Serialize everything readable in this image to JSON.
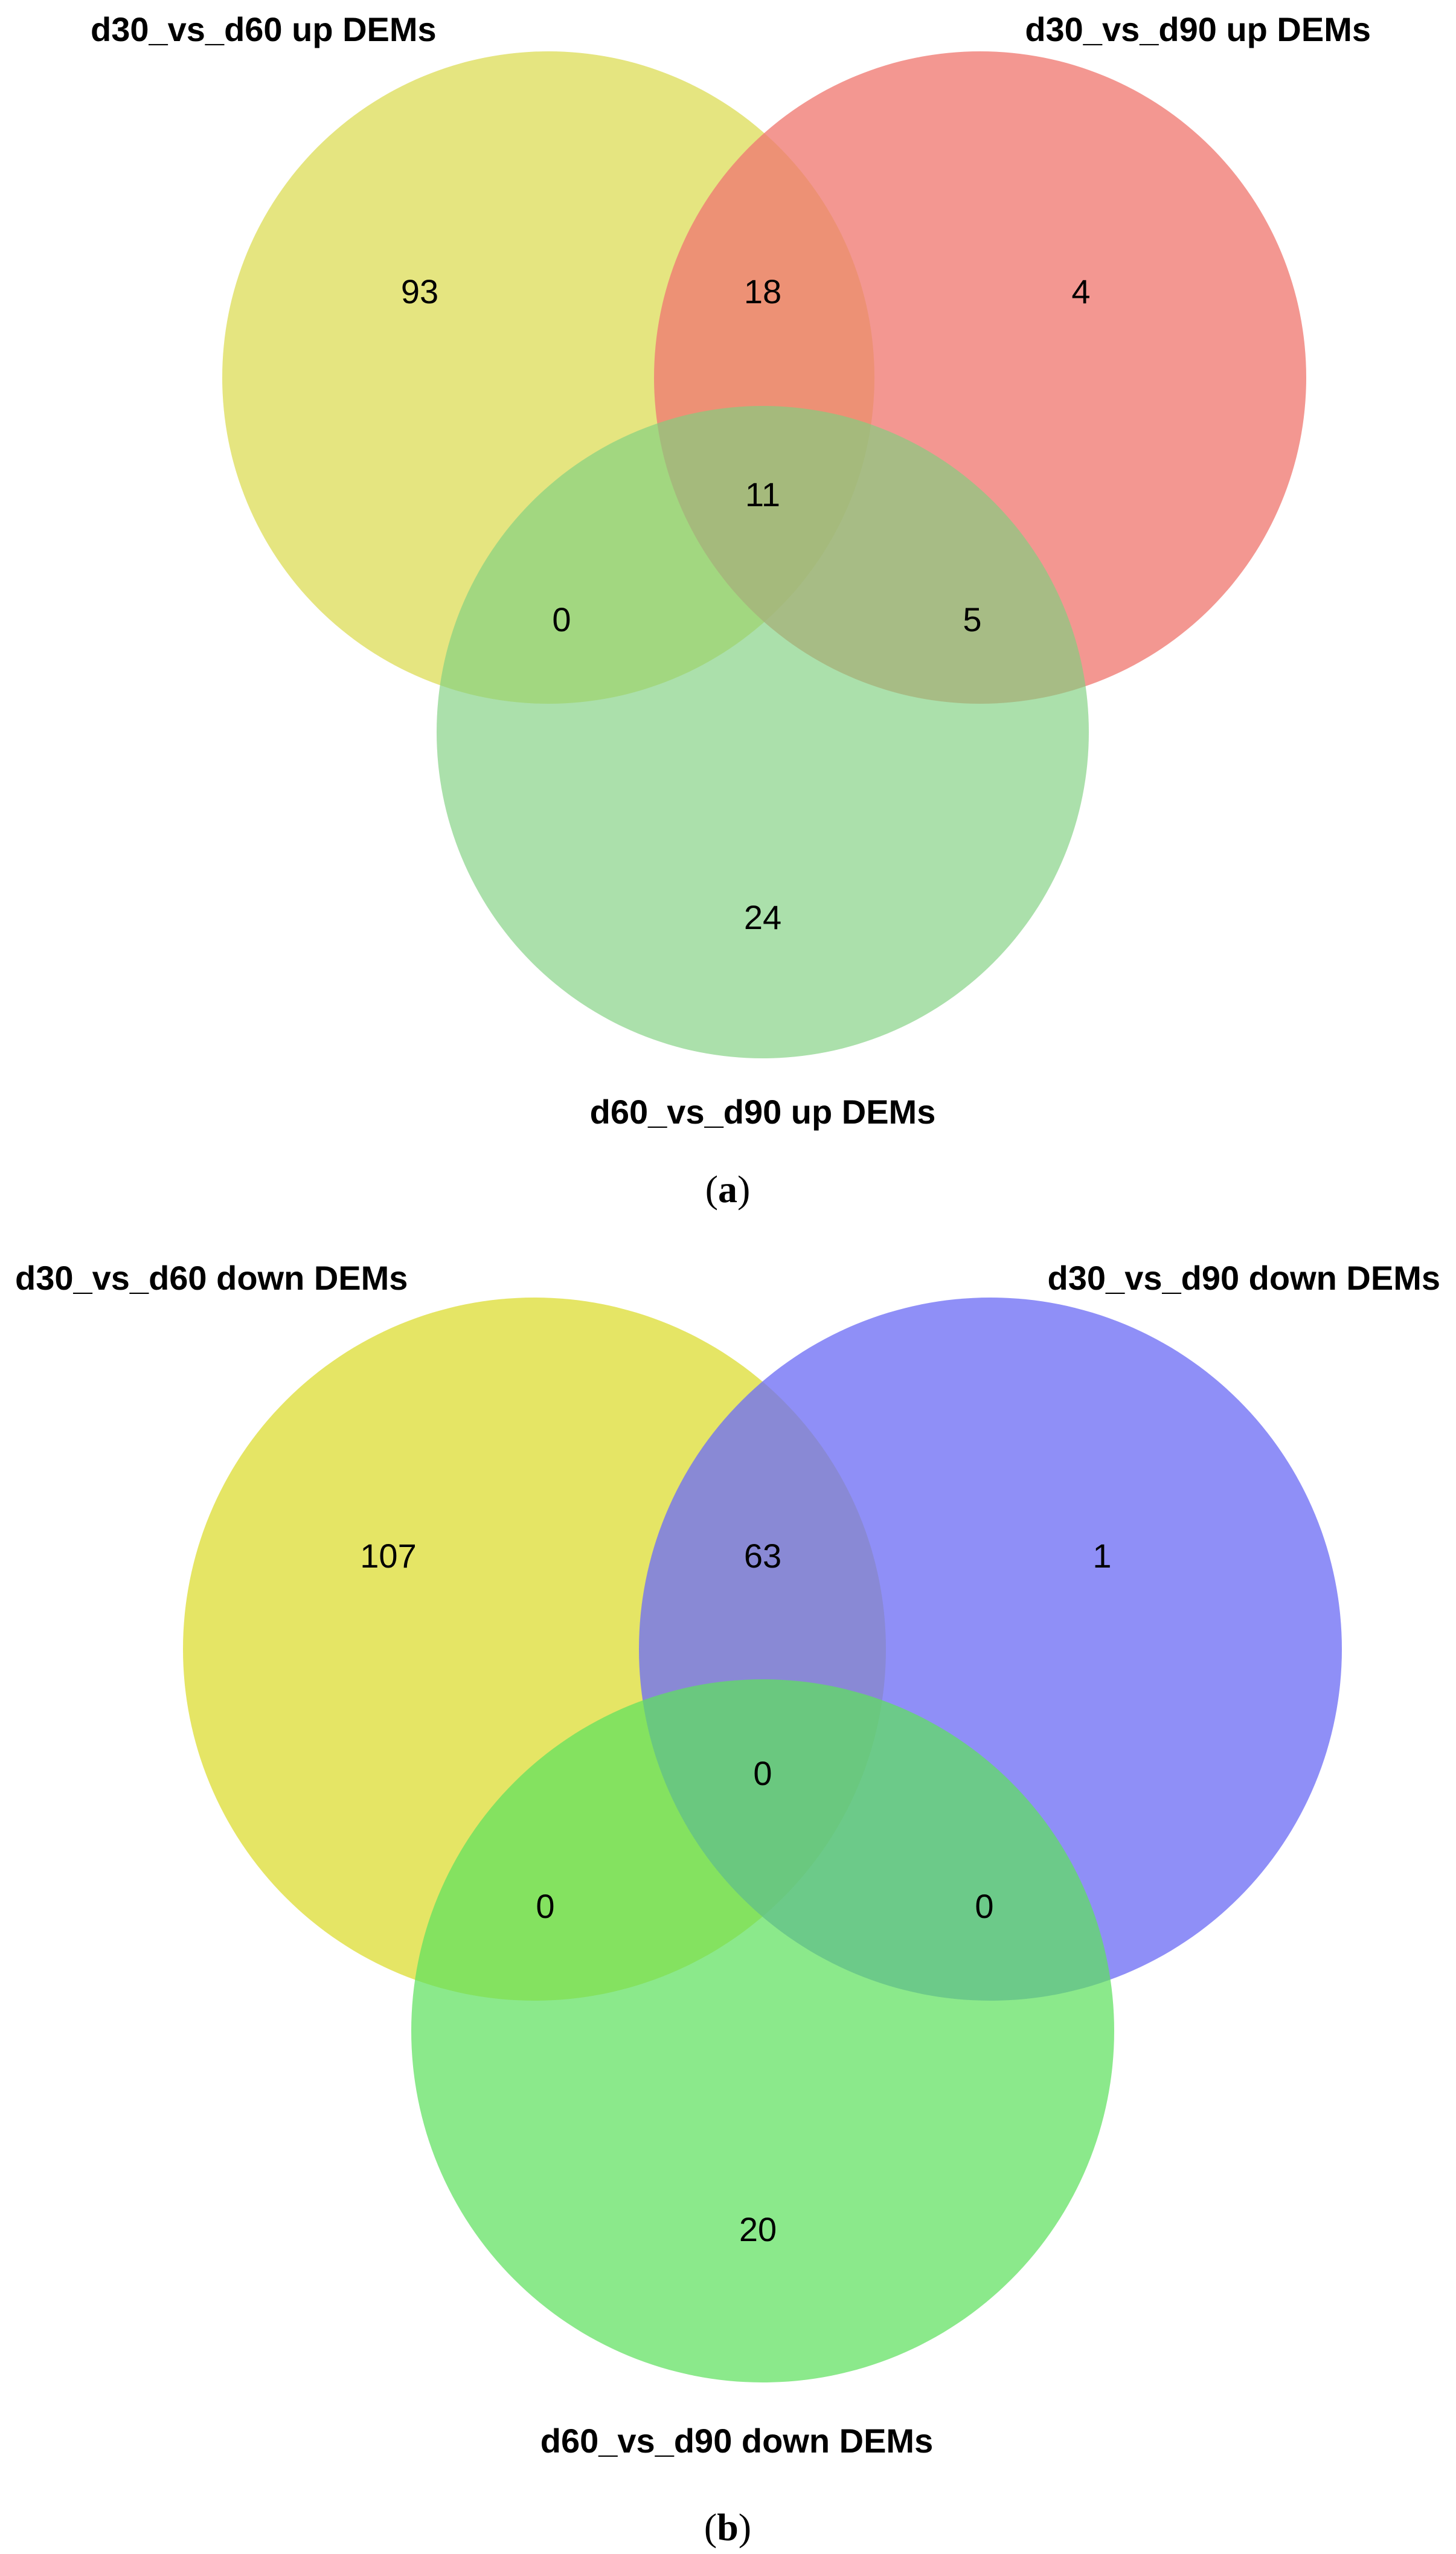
{
  "panels": [
    {
      "id": "a",
      "caption_open": "(",
      "caption_letter": "a",
      "caption_close": ")",
      "sets": [
        {
          "label": "d30_vs_d60 up DEMs",
          "color": "#d9d944"
        },
        {
          "label": "d30_vs_d90 up DEMs",
          "color": "#f07a72"
        },
        {
          "label": "d60_vs_d90 up DEMs",
          "color": "#7fd07f"
        }
      ],
      "counts": {
        "only_1": "93",
        "only_2": "4",
        "only_3": "24",
        "1_2": "18",
        "1_3": "0",
        "2_3": "5",
        "1_2_3": "11"
      }
    },
    {
      "id": "b",
      "caption_open": "(",
      "caption_letter": "b",
      "caption_close": ")",
      "sets": [
        {
          "label": "d30_vs_d60 down DEMs",
          "color": "#dede3a"
        },
        {
          "label": "d30_vs_d90 down DEMs",
          "color": "#6f6ff5"
        },
        {
          "label": "d60_vs_d90 down DEMs",
          "color": "#5ee05e"
        }
      ],
      "counts": {
        "only_1": "107",
        "only_2": "1",
        "only_3": "20",
        "1_2": "63",
        "1_3": "0",
        "2_3": "0",
        "1_2_3": "0"
      }
    }
  ]
}
